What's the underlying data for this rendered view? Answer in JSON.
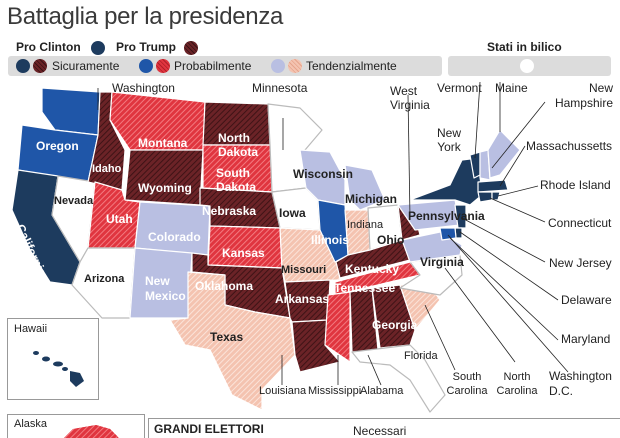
{
  "title": "Battaglia per la presidenza",
  "header": {
    "pro_clinton": "Pro Clinton",
    "pro_trump": "Pro Trump",
    "stati_in_bilico": "Stati in bilico"
  },
  "legend": {
    "sicuramente": "Sicuramente",
    "probabilmente": "Probabilmente",
    "tendenzialmente": "Tendenzialmente"
  },
  "colors": {
    "clinton_sure": "#1d3b5e",
    "clinton_likely": "#1f56a8",
    "clinton_lean": "#b9bfe2",
    "trump_sure": "#6b2327",
    "trump_likely": "#e0353f",
    "trump_lean": "#f4c3b0",
    "tossup": "#ffffff"
  },
  "states": {
    "washington": "Washington",
    "oregon": "Oregon",
    "california": "California",
    "nevada": "Nevada",
    "idaho": "Idaho",
    "montana": "Montana",
    "wyoming": "Wyoming",
    "utah": "Utah",
    "arizona": "Arizona",
    "colorado": "Colorado",
    "new_mexico": "New Mexico",
    "north_dakota": "North Dakota",
    "south_dakota": "South Dakota",
    "nebraska": "Nebraska",
    "kansas": "Kansas",
    "oklahoma": "Oklahoma",
    "texas": "Texas",
    "minnesota": "Minnesota",
    "iowa": "Iowa",
    "missouri": "Missouri",
    "arkansas": "Arkansas",
    "louisiana": "Louisiana",
    "wisconsin": "Wisconsin",
    "illinois": "Illinois",
    "michigan": "Michigan",
    "indiana": "Indiana",
    "ohio": "Ohio",
    "kentucky": "Kentucky",
    "tennessee": "Tennessee",
    "mississippi": "Mississippi",
    "alabama": "Alabama",
    "georgia": "Georgia",
    "florida": "Florida",
    "south_carolina": "South Carolina",
    "north_carolina": "North Carolina",
    "virginia": "Virginia",
    "west_virginia": "West Virginia",
    "pennsylvania": "Pennsylvania",
    "new_york": "New York",
    "vermont": "Vermont",
    "maine": "Maine",
    "new_hampshire": "New Hampshire",
    "massachussetts": "Massachussetts",
    "rhode_island": "Rhode Island",
    "connecticut": "Connecticut",
    "new_jersey": "New Jersey",
    "delaware": "Delaware",
    "maryland": "Maryland",
    "washington_dc": "Washington D.C.",
    "hawaii": "Hawaii",
    "alaska": "Alaska"
  },
  "bottom": {
    "grandi_elettori": "GRANDI ELETTORI",
    "necessari": "Necessari"
  }
}
